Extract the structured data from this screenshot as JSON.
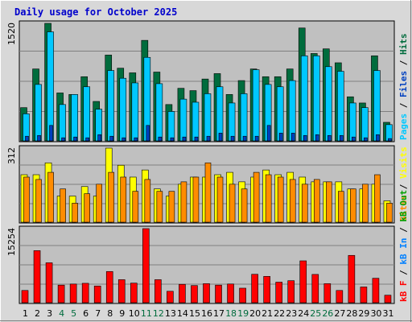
{
  "title": "Daily usage for October 2025",
  "colors": {
    "background": "#d8d8d8",
    "panel": "#c0c0c0",
    "title": "#0000cc",
    "hits": "#006c3d",
    "files": "#00c8ff",
    "pages": "#0040c0",
    "visits": "#ffff00",
    "sites": "#ff8c00",
    "kbin": "#0080ff",
    "kbout": "#00a000",
    "kbf": "#ff0000",
    "weekend_label": "#006c3d",
    "weekday_label": "#000000"
  },
  "side_labels": {
    "panel1": [
      {
        "text": "Pages",
        "color": "#00c8ff"
      },
      {
        "text": " / ",
        "color": "#000000"
      },
      {
        "text": "Files",
        "color": "#0040c0"
      },
      {
        "text": " / ",
        "color": "#000000"
      },
      {
        "text": "Hits",
        "color": "#006c3d"
      }
    ],
    "panel2": [
      {
        "text": "Sites",
        "color": "#ff8c00"
      },
      {
        "text": " / ",
        "color": "#000000"
      },
      {
        "text": "Visits",
        "color": "#ffff00"
      }
    ],
    "panel3": [
      {
        "text": "kB F",
        "color": "#ff0000"
      },
      {
        "text": " / ",
        "color": "#000000"
      },
      {
        "text": "kB In",
        "color": "#0080ff"
      },
      {
        "text": " / ",
        "color": "#000000"
      },
      {
        "text": "kB Out",
        "color": "#00a000"
      }
    ]
  },
  "chart_data": [
    {
      "type": "bar",
      "name": "hits-files-pages",
      "categories": [
        "1",
        "2",
        "3",
        "4",
        "5",
        "6",
        "7",
        "8",
        "9",
        "10",
        "11",
        "12",
        "13",
        "14",
        "15",
        "16",
        "17",
        "18",
        "19",
        "20",
        "21",
        "22",
        "23",
        "24",
        "25",
        "26",
        "27",
        "28",
        "29",
        "30",
        "31"
      ],
      "weekend_days": [
        "4",
        "5",
        "11",
        "12",
        "18",
        "19",
        "25",
        "26"
      ],
      "ymax_label": "1520",
      "ylim": [
        0,
        1520
      ],
      "series": [
        {
          "name": "Hits",
          "values": [
            430,
            930,
            1520,
            620,
            600,
            830,
            510,
            1110,
            940,
            880,
            1300,
            890,
            470,
            680,
            650,
            800,
            870,
            600,
            780,
            930,
            830,
            830,
            930,
            1460,
            1130,
            1190,
            1010,
            570,
            490,
            1100,
            240
          ]
        },
        {
          "name": "Files",
          "values": [
            350,
            730,
            1410,
            470,
            600,
            700,
            410,
            910,
            810,
            750,
            1080,
            740,
            380,
            540,
            500,
            610,
            700,
            490,
            610,
            920,
            730,
            700,
            780,
            1100,
            1100,
            960,
            900,
            490,
            430,
            910,
            210
          ]
        },
        {
          "name": "Pages",
          "values": [
            60,
            70,
            200,
            40,
            50,
            40,
            80,
            60,
            40,
            40,
            200,
            50,
            40,
            50,
            50,
            60,
            100,
            60,
            60,
            60,
            200,
            100,
            100,
            70,
            80,
            70,
            70,
            50,
            40,
            80,
            30
          ]
        }
      ]
    },
    {
      "type": "bar",
      "name": "visits-sites",
      "categories": [
        "1",
        "2",
        "3",
        "4",
        "5",
        "6",
        "7",
        "8",
        "9",
        "10",
        "11",
        "12",
        "13",
        "14",
        "15",
        "16",
        "17",
        "18",
        "19",
        "20",
        "21",
        "22",
        "23",
        "24",
        "25",
        "26",
        "27",
        "28",
        "29",
        "30",
        "31"
      ],
      "ymax_label": "312",
      "ylim": [
        0,
        312
      ],
      "series": [
        {
          "name": "Visits",
          "values": [
            200,
            200,
            250,
            110,
            110,
            150,
            110,
            312,
            240,
            190,
            220,
            140,
            110,
            160,
            190,
            190,
            200,
            210,
            170,
            190,
            220,
            200,
            210,
            190,
            170,
            170,
            170,
            140,
            140,
            160,
            90
          ]
        },
        {
          "name": "Sites",
          "values": [
            190,
            180,
            210,
            140,
            80,
            120,
            160,
            210,
            190,
            130,
            180,
            130,
            130,
            170,
            190,
            250,
            190,
            160,
            140,
            210,
            200,
            190,
            180,
            160,
            180,
            170,
            130,
            140,
            160,
            200,
            80
          ]
        }
      ]
    },
    {
      "type": "bar",
      "name": "kbytes",
      "categories": [
        "1",
        "2",
        "3",
        "4",
        "5",
        "6",
        "7",
        "8",
        "9",
        "10",
        "11",
        "12",
        "13",
        "14",
        "15",
        "16",
        "17",
        "18",
        "19",
        "20",
        "21",
        "22",
        "23",
        "24",
        "25",
        "26",
        "27",
        "28",
        "29",
        "30",
        "31"
      ],
      "ymax_label": "15254",
      "ylim": [
        0,
        15254
      ],
      "series": [
        {
          "name": "kB F",
          "values": [
            2520,
            10720,
            8220,
            3620,
            3840,
            3990,
            3440,
            6420,
            4740,
            4030,
            15254,
            4740,
            2350,
            3780,
            3530,
            3920,
            3620,
            3850,
            2990,
            5850,
            5420,
            4230,
            4530,
            8620,
            5820,
            3920,
            2520,
            9740,
            3240,
            5030,
            1540
          ]
        }
      ]
    }
  ]
}
